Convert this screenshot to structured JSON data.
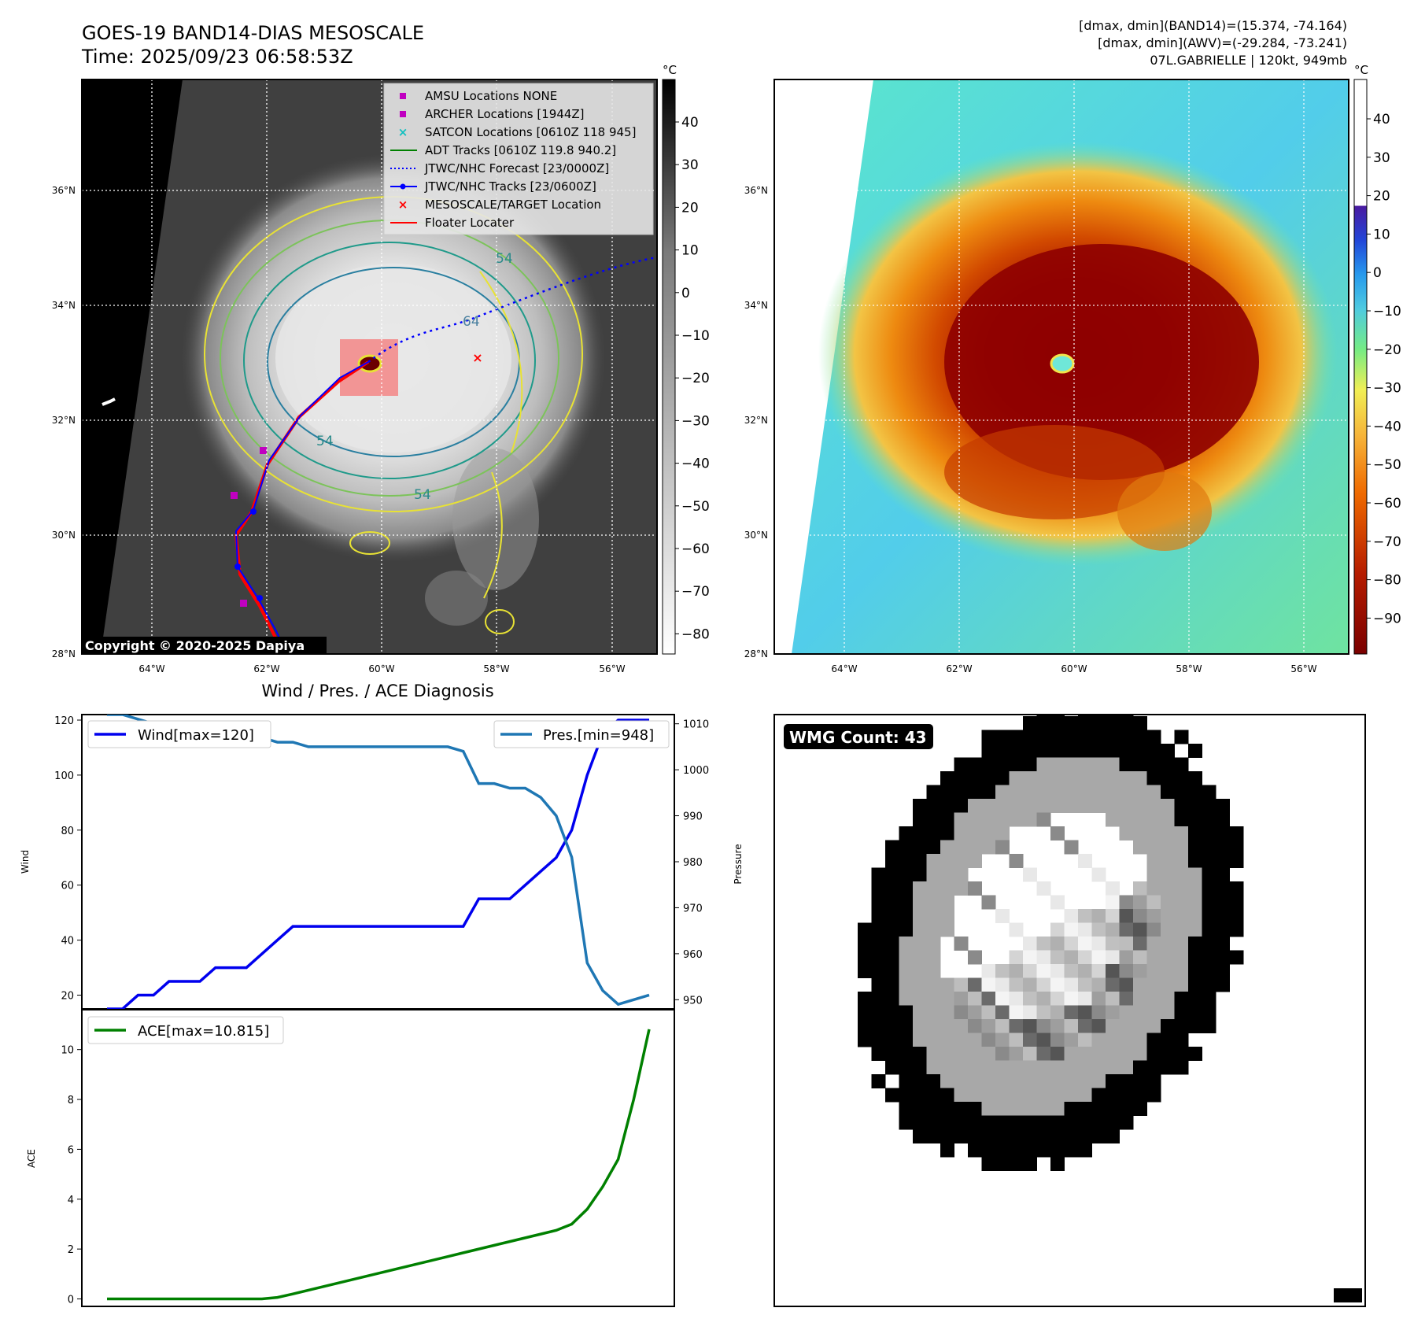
{
  "header_left": {
    "line1": "GOES-19 BAND14-DIAS MESOSCALE",
    "line2": "Time: 2025/09/23 06:58:53Z"
  },
  "header_right": {
    "line1": "[dmax, dmin](BAND14)=(15.374, -74.164)",
    "line2": "[dmax, dmin](AWV)=(-29.284, -73.241)",
    "line3": "07L.GABRIELLE | 120kt, 949mb"
  },
  "map": {
    "lat_labels": [
      "36°N",
      "34°N",
      "32°N",
      "30°N",
      "28°N"
    ],
    "lon_labels": [
      "64°W",
      "62°W",
      "60°W",
      "58°W",
      "56°W"
    ],
    "copyright": "Copyright © 2020-2025 Dapiya",
    "contour_labels": [
      "54",
      "64",
      "54",
      "54"
    ]
  },
  "legend": [
    {
      "label": "AMSU Locations NONE",
      "marker": "square",
      "color": "#c000c0"
    },
    {
      "label": "ARCHER Locations [1944Z]",
      "marker": "square",
      "color": "#c000c0"
    },
    {
      "label": "SATCON Locations [0610Z 118 945]",
      "marker": "x",
      "color": "#10c0c0"
    },
    {
      "label": "ADT Tracks [0610Z 119.8 940.2]",
      "marker": "line",
      "color": "#008000"
    },
    {
      "label": "JTWC/NHC Forecast [23/0000Z]",
      "marker": "dotted",
      "color": "#0000ff"
    },
    {
      "label": "JTWC/NHC Tracks [23/0600Z]",
      "marker": "line-dot",
      "color": "#0000ff"
    },
    {
      "label": "MESOSCALE/TARGET Location",
      "marker": "x",
      "color": "#ff0000"
    },
    {
      "label": "Floater Locater",
      "marker": "line",
      "color": "#ff0000"
    }
  ],
  "colorbar_gray": {
    "unit": "°C",
    "ticks": [
      "40",
      "30",
      "20",
      "10",
      "0",
      "−10",
      "−20",
      "−30",
      "−40",
      "−50",
      "−60",
      "−70",
      "−80"
    ]
  },
  "colorbar_color": {
    "unit": "°C",
    "ticks": [
      "40",
      "30",
      "20",
      "10",
      "0",
      "−10",
      "−20",
      "−30",
      "−40",
      "−50",
      "−60",
      "−70",
      "−80",
      "−90"
    ]
  },
  "wmg": {
    "label": "WMG Count: 43"
  },
  "colors": {
    "wind": "#0000ee",
    "pressure": "#1f77b4",
    "ace": "#008000"
  },
  "chart_data": [
    {
      "type": "line",
      "title": "Wind / Pres. / ACE Diagnosis",
      "ylabel": "Wind",
      "ylabel_right": "Pressure",
      "ylim": [
        15,
        122
      ],
      "ylim_right": [
        948,
        1012
      ],
      "yticks": [
        20,
        40,
        60,
        80,
        100,
        120
      ],
      "yticks_right": [
        950,
        960,
        970,
        980,
        990,
        1000,
        1010
      ],
      "series": [
        {
          "name": "Wind[max=120]",
          "axis": "left",
          "values": [
            15,
            15,
            20,
            20,
            25,
            25,
            25,
            30,
            30,
            30,
            35,
            40,
            45,
            45,
            45,
            45,
            45,
            45,
            45,
            45,
            45,
            45,
            45,
            45,
            55,
            55,
            55,
            60,
            65,
            70,
            80,
            100,
            115,
            120,
            120,
            120
          ]
        },
        {
          "name": "Pres.[min=948]",
          "axis": "right",
          "values": [
            1012,
            1012,
            1011,
            1010,
            1010,
            1009,
            1008,
            1008,
            1007,
            1007,
            1007,
            1006,
            1006,
            1005,
            1005,
            1005,
            1005,
            1005,
            1005,
            1005,
            1005,
            1005,
            1005,
            1004,
            997,
            997,
            996,
            996,
            994,
            990,
            981,
            958,
            952,
            949,
            950,
            951
          ]
        }
      ]
    },
    {
      "type": "line",
      "ylabel": "ACE",
      "ylim": [
        -0.3,
        11.6
      ],
      "yticks": [
        0,
        2,
        4,
        6,
        8,
        10
      ],
      "series": [
        {
          "name": "ACE[max=10.815]",
          "values": [
            0,
            0,
            0,
            0,
            0,
            0,
            0,
            0,
            0,
            0,
            0,
            0.06,
            0.2,
            0.35,
            0.5,
            0.65,
            0.8,
            0.95,
            1.1,
            1.25,
            1.4,
            1.55,
            1.7,
            1.85,
            2.0,
            2.15,
            2.3,
            2.45,
            2.6,
            2.75,
            3.0,
            3.6,
            4.5,
            5.6,
            8.0,
            10.815
          ]
        }
      ]
    }
  ]
}
